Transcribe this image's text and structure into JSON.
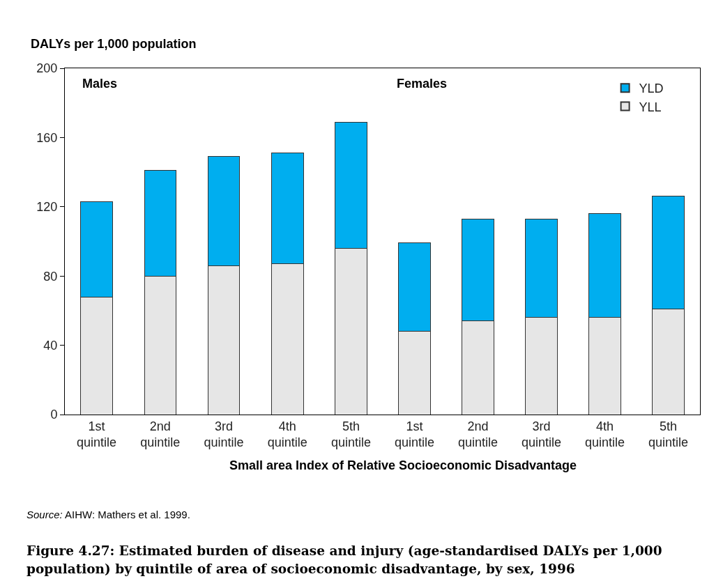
{
  "chart_data": [
    {
      "type": "bar",
      "stacked": true,
      "ylabel": "DALYs per 1,000 population",
      "xlabel": "Small area Index of Relative Socioeconomic Disadvantage",
      "categories": [
        "1st quintile",
        "2nd quintile",
        "3rd quintile",
        "4th quintile",
        "5th quintile"
      ],
      "series": [
        {
          "color": "#e6e6e6",
          "values": [
            68,
            80,
            86,
            87,
            96
          ]
        },
        {
          "color": "#00aeef",
          "values": [
            55,
            61,
            63,
            64,
            73
          ]
        }
      ],
      "ylim": [
        0,
        200
      ],
      "yticks": [
        0,
        40,
        80,
        120,
        160,
        200
      ],
      "grid": false,
      "legend": false,
      "annotations": [
        "Males",
        "Source: AIHW: Mathers et al. 1999.",
        "Figure 4.27: Estimated burden of disease and injury (age-standardised DALYs per 1,000 population) by quintile of area of socioeconomic disadvantage, by sex, 1996"
      ]
    },
    {
      "type": "bar",
      "stacked": true,
      "categories": [
        "1st quintile",
        "2nd quintile",
        "3rd quintile",
        "4th quintile",
        "5th quintile"
      ],
      "series": [
        {
          "name": "YLL",
          "color": "#e6e6e6",
          "values": [
            48,
            54,
            56,
            56,
            61
          ]
        },
        {
          "name": "YLD",
          "color": "#00aeef",
          "values": [
            51,
            59,
            57,
            60,
            65
          ]
        }
      ],
      "ylim": [
        0,
        200
      ],
      "yticks": [
        0,
        40,
        80,
        120,
        160,
        200
      ],
      "tick_labels": "x",
      "grid": false,
      "legend": "top right",
      "annotations": [
        "Females"
      ]
    }
  ]
}
